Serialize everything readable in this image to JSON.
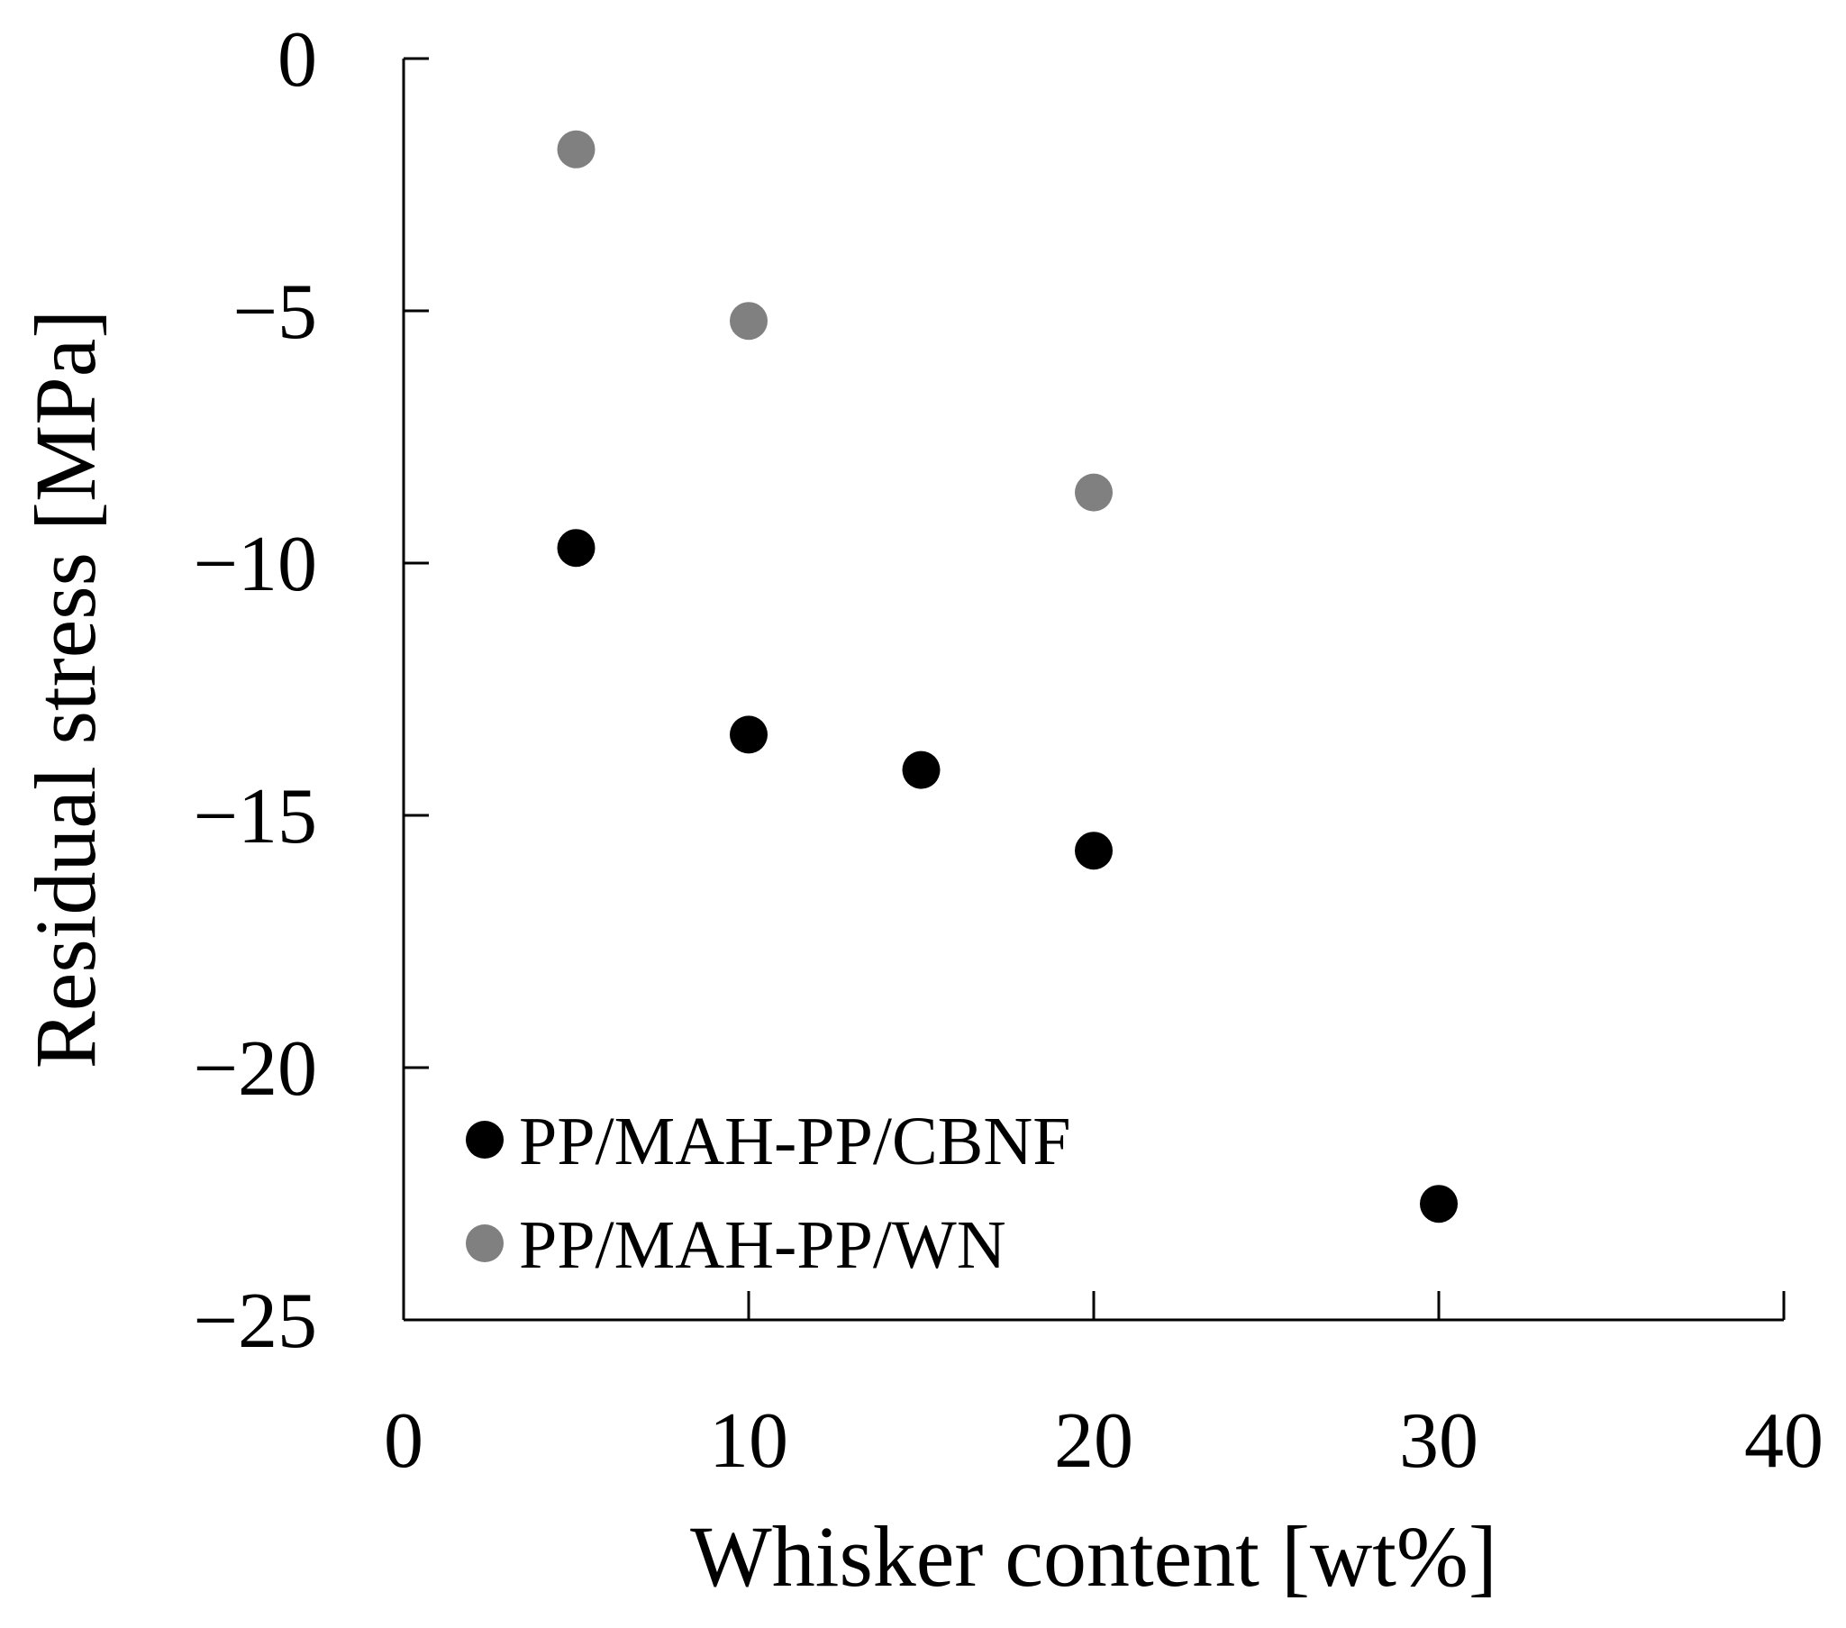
{
  "chart_data": {
    "type": "scatter",
    "xlabel": "Whisker content [wt%]",
    "ylabel": "Residual stress [MPa]",
    "xlim": [
      0,
      40
    ],
    "ylim": [
      -25,
      0
    ],
    "x_ticks": [
      0,
      10,
      20,
      30,
      40
    ],
    "x_tick_labels": [
      "0",
      "10",
      "20",
      "30",
      "40"
    ],
    "y_ticks": [
      0,
      -5,
      -10,
      -15,
      -20,
      -25
    ],
    "y_tick_labels": [
      "0",
      "−5",
      "−10",
      "−15",
      "−20",
      "−25"
    ],
    "grid": false,
    "legend_position": "bottom-left",
    "series": [
      {
        "name": "PP/MAH-PP/CBNF",
        "color": "#000000",
        "x": [
          5,
          10,
          15,
          20,
          30
        ],
        "y": [
          -9.7,
          -13.4,
          -14.1,
          -15.7,
          -22.7
        ]
      },
      {
        "name": "PP/MAH-PP/WN",
        "color": "#808080",
        "x": [
          5,
          10,
          20
        ],
        "y": [
          -1.8,
          -5.2,
          -8.6
        ]
      }
    ]
  }
}
